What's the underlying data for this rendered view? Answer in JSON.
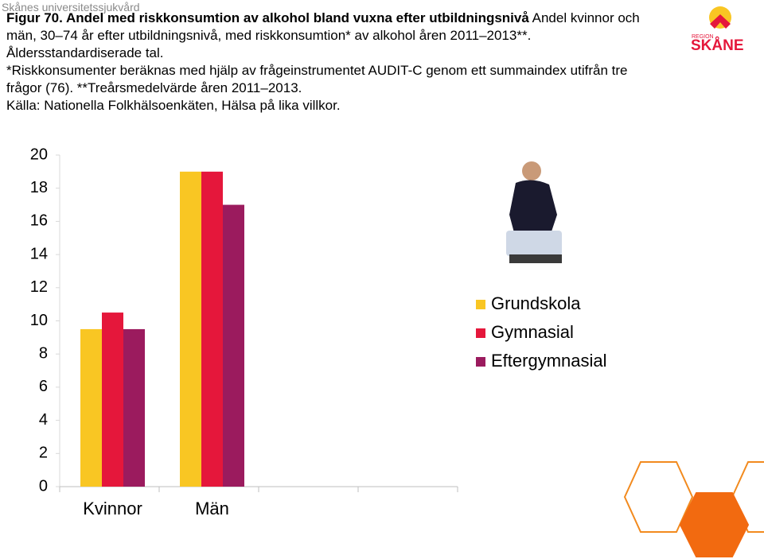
{
  "header": "Skånes universitetssjukvård",
  "logo": {
    "small": "REGION",
    "name": "SKÅNE"
  },
  "chart_data": {
    "type": "bar",
    "title": "Figur 70. Andel med riskkonsumtion av alkohol bland vuxna efter utbildningsnivå",
    "subtitle": [
      "Andel kvinnor och",
      "män, 30–74 år efter utbildningsnivå, med riskkonsumtion* av alkohol åren 2011–2013**.",
      "Åldersstandardiserade tal."
    ],
    "notes": [
      "*Riskkonsumenter beräknas med hjälp av frågeinstrumentet AUDIT-C genom ett summaindex utifrån tre",
      "frågor (76). **Treårsmedelvärde åren 2011–2013."
    ],
    "source": "Källa: Nationella Folkhälsoenkäten, Hälsa på lika villkor.",
    "categories": [
      "Kvinnor",
      "Män",
      null,
      null
    ],
    "series": [
      {
        "name": "Grundskola",
        "color": "#f9c623",
        "values": [
          9.5,
          19,
          null,
          null
        ]
      },
      {
        "name": "Gymnasial",
        "color": "#e5173b",
        "values": [
          10.5,
          19,
          null,
          null
        ]
      },
      {
        "name": "Eftergymnasial",
        "color": "#9b1b5e",
        "values": [
          9.5,
          17,
          null,
          null
        ]
      }
    ],
    "ylim": [
      0,
      20
    ],
    "yticks": [
      0,
      2,
      4,
      6,
      8,
      10,
      12,
      14,
      16,
      18,
      20
    ],
    "grid": false,
    "legend": "right"
  }
}
